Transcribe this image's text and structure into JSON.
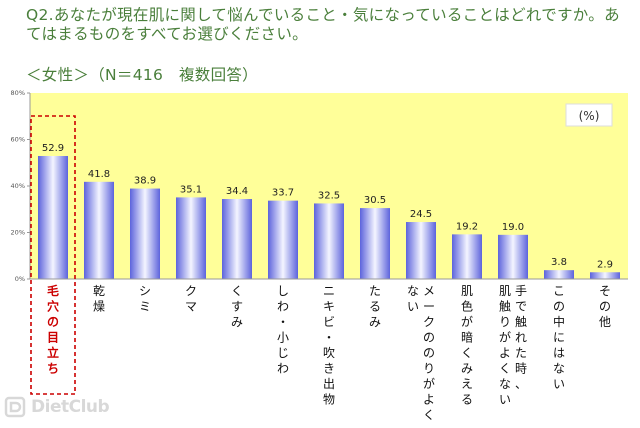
{
  "question": "Q2.あなたが現在肌に関して悩んでいること・気になっていることはどれですか。あてはまるものをすべてお選びください。",
  "subtitle": "＜女性＞（N＝416　複数回答）",
  "watermark_text": "DietClub",
  "chart_data": {
    "type": "bar",
    "title": "Q2.あなたが現在肌に関して悩んでいること・気になっていることはどれですか。あてはまるものをすべてお選びください。",
    "subtitle": "＜女性＞（N＝416　複数回答）",
    "unit_label": "(%)",
    "categories": [
      "毛穴の目立ち",
      "乾燥",
      "シミ",
      "クマ",
      "くすみ",
      "しわ・小じわ",
      "ニキビ・吹き出物",
      "たるみ",
      "メークののりがよくない",
      "肌色が暗くみえる",
      "手で触れた時、肌触りがよくない",
      "この中にはない",
      "その他"
    ],
    "values": [
      52.9,
      41.8,
      38.9,
      35.1,
      34.4,
      33.7,
      32.5,
      30.5,
      24.5,
      19.2,
      19.0,
      3.8,
      2.9
    ],
    "value_labels": [
      "52.9",
      "41.8",
      "38.9",
      "35.1",
      "34.4",
      "33.7",
      "32.5",
      "30.5",
      "24.5",
      "19.2",
      "19.0",
      "3.8",
      "2.9"
    ],
    "label_columns": [
      [
        "毛穴の目立ち"
      ],
      [
        "乾燥"
      ],
      [
        "シミ"
      ],
      [
        "クマ"
      ],
      [
        "くすみ"
      ],
      [
        "しわ・小じわ"
      ],
      [
        "ニキビ・吹き出物"
      ],
      [
        "たるみ"
      ],
      [
        "ない",
        "メークののりがよく"
      ],
      [
        "肌色が暗くみえる"
      ],
      [
        "肌触りがよくない",
        "手で触れた時、"
      ],
      [
        "この中にはない"
      ],
      [
        "その他"
      ]
    ],
    "yticks": [
      "0%",
      "20%",
      "40%",
      "60%",
      "80%"
    ],
    "ylim": [
      0,
      80
    ],
    "highlight_index": 0,
    "highlight_color": "#cc0000",
    "plot_background": "#ffff99",
    "bar_color": "#6f77e6",
    "grid": false
  }
}
